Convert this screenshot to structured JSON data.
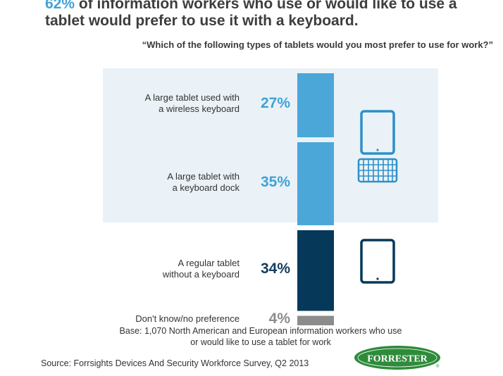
{
  "headline": {
    "highlight": "62%",
    "rest": " of information workers who use or would like to use a tablet would prefer to use it with a keyboard."
  },
  "question": "“Which of the following types of tablets would you most prefer to use for work?”",
  "chart_data": {
    "type": "bar",
    "orientation": "stacked-vertical",
    "unit": "%",
    "categories": [
      "A large tablet used with a wireless keyboard",
      "A large tablet with a keyboard dock",
      "A regular tablet without a keyboard",
      "Don't know/no preference"
    ],
    "label_lines": [
      [
        "A large tablet used with",
        "a wireless keyboard"
      ],
      [
        "A large tablet with",
        "a keyboard dock"
      ],
      [
        "A regular tablet",
        "without a keyboard"
      ],
      [
        "Don't know/no preference"
      ]
    ],
    "values": [
      27,
      35,
      34,
      4
    ],
    "value_labels": [
      "27%",
      "35%",
      "34%",
      "4%"
    ],
    "colors": [
      "#4aa7d8",
      "#4aa7d8",
      "#06385a",
      "#8c8c8c"
    ],
    "label_colors": [
      "#3fa2d6",
      "#3fa2d6",
      "#123d5e",
      "#8c8c8c"
    ],
    "highlight_group": {
      "categories": [
        0,
        1
      ],
      "background": "#eaf2f7"
    }
  },
  "icons": [
    "tablet-with-keyboard-icon",
    "tablet-icon"
  ],
  "base_note": {
    "line1": "Base: 1,070 North American and European information workers who use",
    "line2": "or would like to use a tablet for work"
  },
  "source": "Source: Forrsights Devices And Security Workforce Survey, Q2 2013",
  "logo": {
    "text": "FORRESTER",
    "mark": "®",
    "color": "#2e8b3a"
  }
}
